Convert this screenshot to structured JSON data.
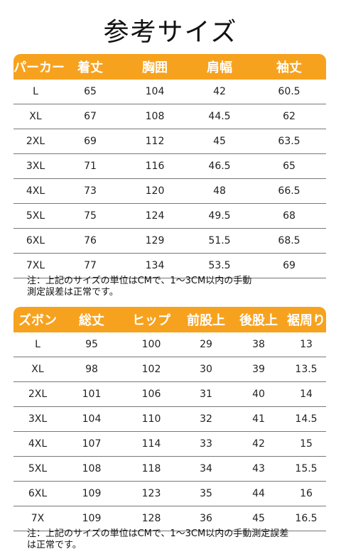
{
  "title": "参考サイズ",
  "top_table": {
    "headers": [
      "パーカー",
      "着丈",
      "胸囲",
      "肩幅",
      "袖丈"
    ],
    "rows": [
      [
        "L",
        "65",
        "104",
        "42",
        "60.5"
      ],
      [
        "XL",
        "67",
        "108",
        "44.5",
        "62"
      ],
      [
        "2XL",
        "69",
        "112",
        "45",
        "63.5"
      ],
      [
        "3XL",
        "71",
        "116",
        "46.5",
        "65"
      ],
      [
        "4XL",
        "73",
        "120",
        "48",
        "66.5"
      ],
      [
        "5XL",
        "75",
        "124",
        "49.5",
        "68"
      ],
      [
        "6XL",
        "76",
        "129",
        "51.5",
        "68.5"
      ],
      [
        "7XL",
        "77",
        "134",
        "53.5",
        "69"
      ]
    ],
    "note_line1": "注：上記のサイズの単位はCMで、1～3CM以内の手動",
    "note_line2": "測定誤差は正常です。"
  },
  "bottom_table": {
    "headers": [
      "ズボン",
      "総丈",
      "ヒップ",
      "前股上",
      "後股上",
      "裾周り"
    ],
    "rows": [
      [
        "L",
        "95",
        "100",
        "29",
        "38",
        "13"
      ],
      [
        "XL",
        "98",
        "102",
        "30",
        "39",
        "13.5"
      ],
      [
        "2XL",
        "101",
        "106",
        "31",
        "40",
        "14"
      ],
      [
        "3XL",
        "104",
        "110",
        "32",
        "41",
        "14.5"
      ],
      [
        "4XL",
        "107",
        "114",
        "33",
        "42",
        "15"
      ],
      [
        "5XL",
        "108",
        "118",
        "34",
        "43",
        "15.5"
      ],
      [
        "6XL",
        "109",
        "123",
        "35",
        "44",
        "16"
      ],
      [
        "7X",
        "109",
        "128",
        "36",
        "45",
        "16.5"
      ]
    ],
    "note_line1": "注：上記のサイズの単位はCMで、1～3CM以内の手動測定誤差",
    "note_line2": "は正常です。"
  },
  "colors": {
    "header_bg": "#f7a21e",
    "header_text": "#ffffff",
    "row_line": "#777777"
  }
}
